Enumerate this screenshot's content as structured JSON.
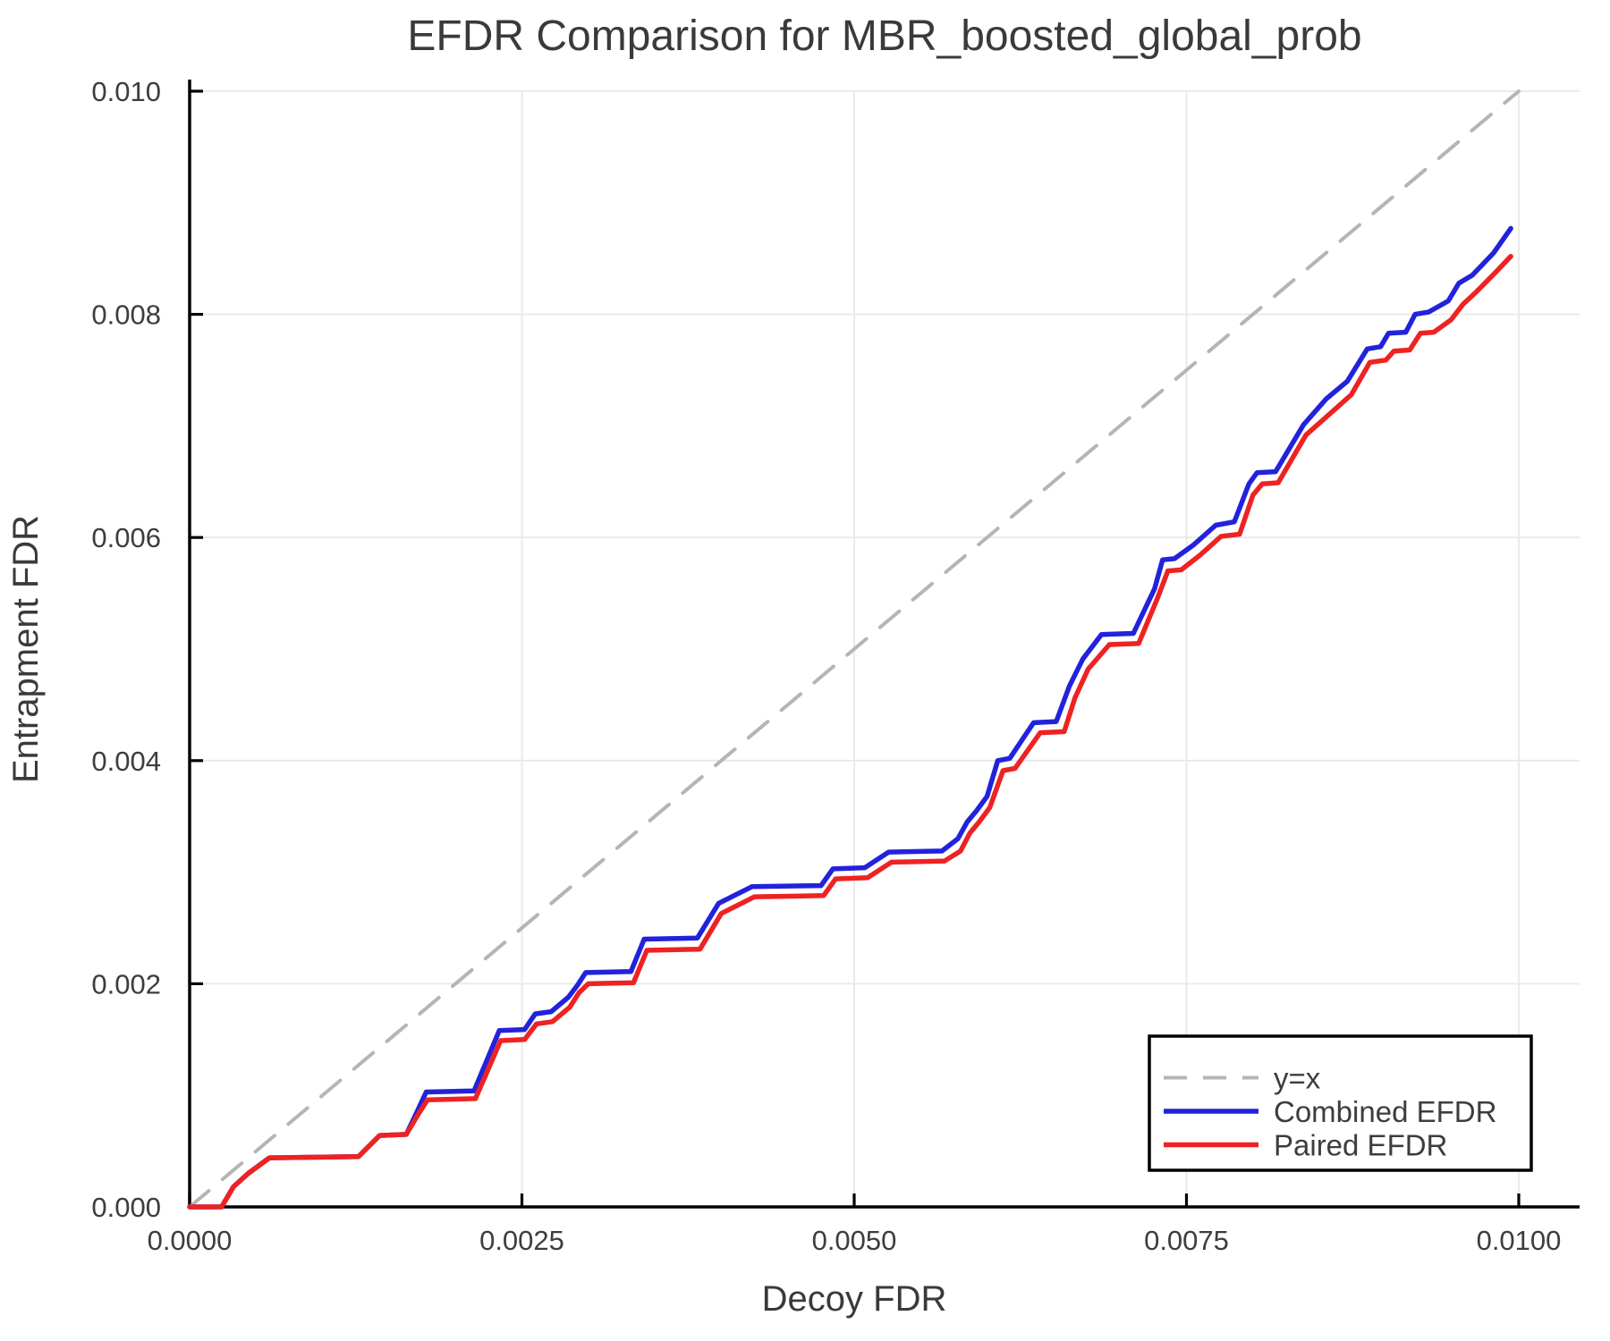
{
  "chart_data": {
    "type": "line",
    "title": "EFDR Comparison for MBR_boosted_global_prob",
    "xlabel": "Decoy FDR",
    "ylabel": "Entrapment FDR",
    "xlim": [
      0,
      0.01046
    ],
    "ylim": [
      0,
      0.01006
    ],
    "grid": true,
    "x_ticks": {
      "values": [
        0,
        0.0025,
        0.005,
        0.0075,
        0.01
      ],
      "labels": [
        "0.0000",
        "0.0025",
        "0.0050",
        "0.0075",
        "0.0100"
      ]
    },
    "y_ticks": {
      "values": [
        0,
        0.002,
        0.004,
        0.006,
        0.008,
        0.01
      ],
      "labels": [
        "0.000",
        "0.002",
        "0.004",
        "0.006",
        "0.008",
        "0.010"
      ]
    },
    "colors": {
      "identity": "#b5b5b5",
      "combined": "#2222dd",
      "paired": "#ee2222",
      "grid": "#e8e8e8",
      "axis": "#000000",
      "text": "#3d3d3d"
    },
    "legend": {
      "position": "bottom-right",
      "entries": [
        {
          "label": "y=x",
          "color": "#b5b5b5",
          "dash": true
        },
        {
          "label": "Combined EFDR",
          "color": "#2222dd",
          "dash": false
        },
        {
          "label": "Paired EFDR",
          "color": "#ee2222",
          "dash": false
        }
      ]
    },
    "series": [
      {
        "name": "y=x",
        "dash": true,
        "color": "#b5b5b5",
        "points": [
          [
            0,
            0
          ],
          [
            0.01,
            0.01
          ]
        ]
      },
      {
        "name": "Combined EFDR",
        "dash": false,
        "color": "#2222dd",
        "points": [
          [
            0,
            0
          ],
          [
            0.00024,
            0
          ],
          [
            0.00033,
            0.00018
          ],
          [
            0.00044,
            0.0003
          ],
          [
            0.0006,
            0.00044
          ],
          [
            0.00127,
            0.00045
          ],
          [
            0.00143,
            0.00064
          ],
          [
            0.00163,
            0.00065
          ],
          [
            0.00171,
            0.00085
          ],
          [
            0.00178,
            0.00103
          ],
          [
            0.00214,
            0.00104
          ],
          [
            0.00233,
            0.00158
          ],
          [
            0.00252,
            0.00159
          ],
          [
            0.0026,
            0.00173
          ],
          [
            0.00272,
            0.00175
          ],
          [
            0.00285,
            0.00188
          ],
          [
            0.00292,
            0.00199
          ],
          [
            0.00298,
            0.0021
          ],
          [
            0.00332,
            0.00211
          ],
          [
            0.00342,
            0.0024
          ],
          [
            0.00382,
            0.00241
          ],
          [
            0.00398,
            0.00272
          ],
          [
            0.00423,
            0.00287
          ],
          [
            0.00475,
            0.00288
          ],
          [
            0.00484,
            0.00303
          ],
          [
            0.00508,
            0.00304
          ],
          [
            0.00526,
            0.00318
          ],
          [
            0.00566,
            0.00319
          ],
          [
            0.00578,
            0.0033
          ],
          [
            0.00585,
            0.00345
          ],
          [
            0.00592,
            0.00355
          ],
          [
            0.006,
            0.00368
          ],
          [
            0.00608,
            0.004
          ],
          [
            0.00617,
            0.00402
          ],
          [
            0.00635,
            0.00434
          ],
          [
            0.00652,
            0.00435
          ],
          [
            0.00662,
            0.00467
          ],
          [
            0.00672,
            0.00491
          ],
          [
            0.00686,
            0.00513
          ],
          [
            0.0071,
            0.00514
          ],
          [
            0.00726,
            0.00554
          ],
          [
            0.00732,
            0.0058
          ],
          [
            0.00741,
            0.00581
          ],
          [
            0.00755,
            0.00593
          ],
          [
            0.00772,
            0.00611
          ],
          [
            0.00786,
            0.00614
          ],
          [
            0.00797,
            0.00648
          ],
          [
            0.00803,
            0.00658
          ],
          [
            0.00817,
            0.00659
          ],
          [
            0.00838,
            0.00701
          ],
          [
            0.00855,
            0.00724
          ],
          [
            0.00871,
            0.0074
          ],
          [
            0.00886,
            0.00769
          ],
          [
            0.00896,
            0.00771
          ],
          [
            0.00902,
            0.00783
          ],
          [
            0.00915,
            0.00784
          ],
          [
            0.00922,
            0.008
          ],
          [
            0.00932,
            0.00802
          ],
          [
            0.00947,
            0.00812
          ],
          [
            0.00955,
            0.00828
          ],
          [
            0.00965,
            0.00835
          ],
          [
            0.00981,
            0.00855
          ],
          [
            0.00994,
            0.00877
          ]
        ]
      },
      {
        "name": "Paired EFDR",
        "dash": false,
        "color": "#ee2222",
        "points": [
          [
            0,
            0
          ],
          [
            0.00024,
            0
          ],
          [
            0.00033,
            0.00018
          ],
          [
            0.00044,
            0.0003
          ],
          [
            0.0006,
            0.00044
          ],
          [
            0.00127,
            0.00045
          ],
          [
            0.00143,
            0.00064
          ],
          [
            0.00163,
            0.00065
          ],
          [
            0.00172,
            0.00083
          ],
          [
            0.00179,
            0.00096
          ],
          [
            0.00215,
            0.00097
          ],
          [
            0.00234,
            0.00149
          ],
          [
            0.00252,
            0.0015
          ],
          [
            0.00261,
            0.00164
          ],
          [
            0.00273,
            0.00166
          ],
          [
            0.00286,
            0.00179
          ],
          [
            0.00293,
            0.00192
          ],
          [
            0.003,
            0.002
          ],
          [
            0.00334,
            0.00201
          ],
          [
            0.00344,
            0.0023
          ],
          [
            0.00384,
            0.00231
          ],
          [
            0.004,
            0.00263
          ],
          [
            0.00425,
            0.00278
          ],
          [
            0.00477,
            0.00279
          ],
          [
            0.00486,
            0.00294
          ],
          [
            0.0051,
            0.00295
          ],
          [
            0.00528,
            0.00309
          ],
          [
            0.00568,
            0.0031
          ],
          [
            0.0058,
            0.00319
          ],
          [
            0.00587,
            0.00335
          ],
          [
            0.00594,
            0.00345
          ],
          [
            0.00602,
            0.00358
          ],
          [
            0.00612,
            0.00391
          ],
          [
            0.00621,
            0.00393
          ],
          [
            0.0064,
            0.00425
          ],
          [
            0.00658,
            0.00426
          ],
          [
            0.00666,
            0.00456
          ],
          [
            0.00676,
            0.00482
          ],
          [
            0.00692,
            0.00504
          ],
          [
            0.00714,
            0.00505
          ],
          [
            0.00728,
            0.00545
          ],
          [
            0.00736,
            0.0057
          ],
          [
            0.00746,
            0.00571
          ],
          [
            0.0076,
            0.00584
          ],
          [
            0.00776,
            0.00601
          ],
          [
            0.0079,
            0.00603
          ],
          [
            0.008,
            0.00638
          ],
          [
            0.00807,
            0.00648
          ],
          [
            0.00819,
            0.00649
          ],
          [
            0.0084,
            0.00692
          ],
          [
            0.00858,
            0.00711
          ],
          [
            0.00874,
            0.00728
          ],
          [
            0.00888,
            0.00757
          ],
          [
            0.009,
            0.00759
          ],
          [
            0.00906,
            0.00767
          ],
          [
            0.00918,
            0.00768
          ],
          [
            0.00926,
            0.00783
          ],
          [
            0.00936,
            0.00784
          ],
          [
            0.00949,
            0.00795
          ],
          [
            0.00958,
            0.00809
          ],
          [
            0.00968,
            0.0082
          ],
          [
            0.00982,
            0.00837
          ],
          [
            0.00994,
            0.00852
          ]
        ]
      }
    ]
  }
}
